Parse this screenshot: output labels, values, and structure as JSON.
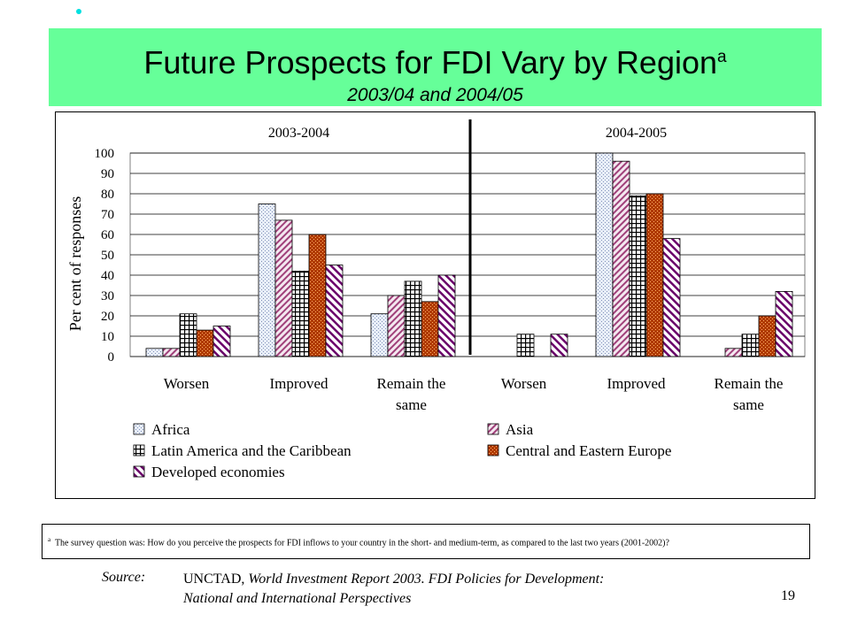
{
  "slide": {
    "title": "Future Prospects for FDI Vary by Region",
    "title_superscript": "a",
    "subtitle": "2003/04 and 2004/05",
    "page_number": "19"
  },
  "colors": {
    "banner": "#66ff99",
    "bullet": "#00e0e0",
    "Africa": "#c8d4ec",
    "Asia": "#a0407a",
    "Latin America and the Caribbean": "#000000",
    "Central and Eastern Europe": "#b03a00",
    "Developed economies": "#6a006a"
  },
  "chart_data": {
    "type": "bar",
    "panels": [
      "2003-2004",
      "2004-2005"
    ],
    "categories": [
      "Worsen",
      "Improved",
      "Remain the same",
      "Worsen",
      "Improved",
      "Remain the same"
    ],
    "ylabel": "Per cent of responses",
    "ylim": [
      0,
      100
    ],
    "yticks": [
      "0",
      "10",
      "20",
      "30",
      "40",
      "50",
      "60",
      "70",
      "80",
      "90",
      "100"
    ],
    "grid": true,
    "legend_position": "bottom",
    "series": [
      {
        "name": "Africa",
        "values": [
          4,
          75,
          21,
          null,
          100,
          null
        ]
      },
      {
        "name": "Asia",
        "values": [
          4,
          67,
          30,
          null,
          96,
          4
        ]
      },
      {
        "name": "Latin America and the Caribbean",
        "values": [
          21,
          42,
          37,
          11,
          79,
          11
        ]
      },
      {
        "name": "Central and Eastern Europe",
        "values": [
          13,
          60,
          27,
          null,
          80,
          20
        ]
      },
      {
        "name": "Developed economies",
        "values": [
          15,
          45,
          40,
          11,
          58,
          32
        ]
      }
    ]
  },
  "footnote": {
    "marker": "a",
    "text": "The survey question was: How do you perceive the prospects for FDI inflows to your country in the short- and medium-term,  as compared to the last two years (2001-2002)?"
  },
  "source": {
    "label": "Source:",
    "org": "UNCTAD, ",
    "title_line1": "World Investment Report 2003.  FDI Policies for Development:",
    "title_line2": "National and International Perspectives"
  }
}
